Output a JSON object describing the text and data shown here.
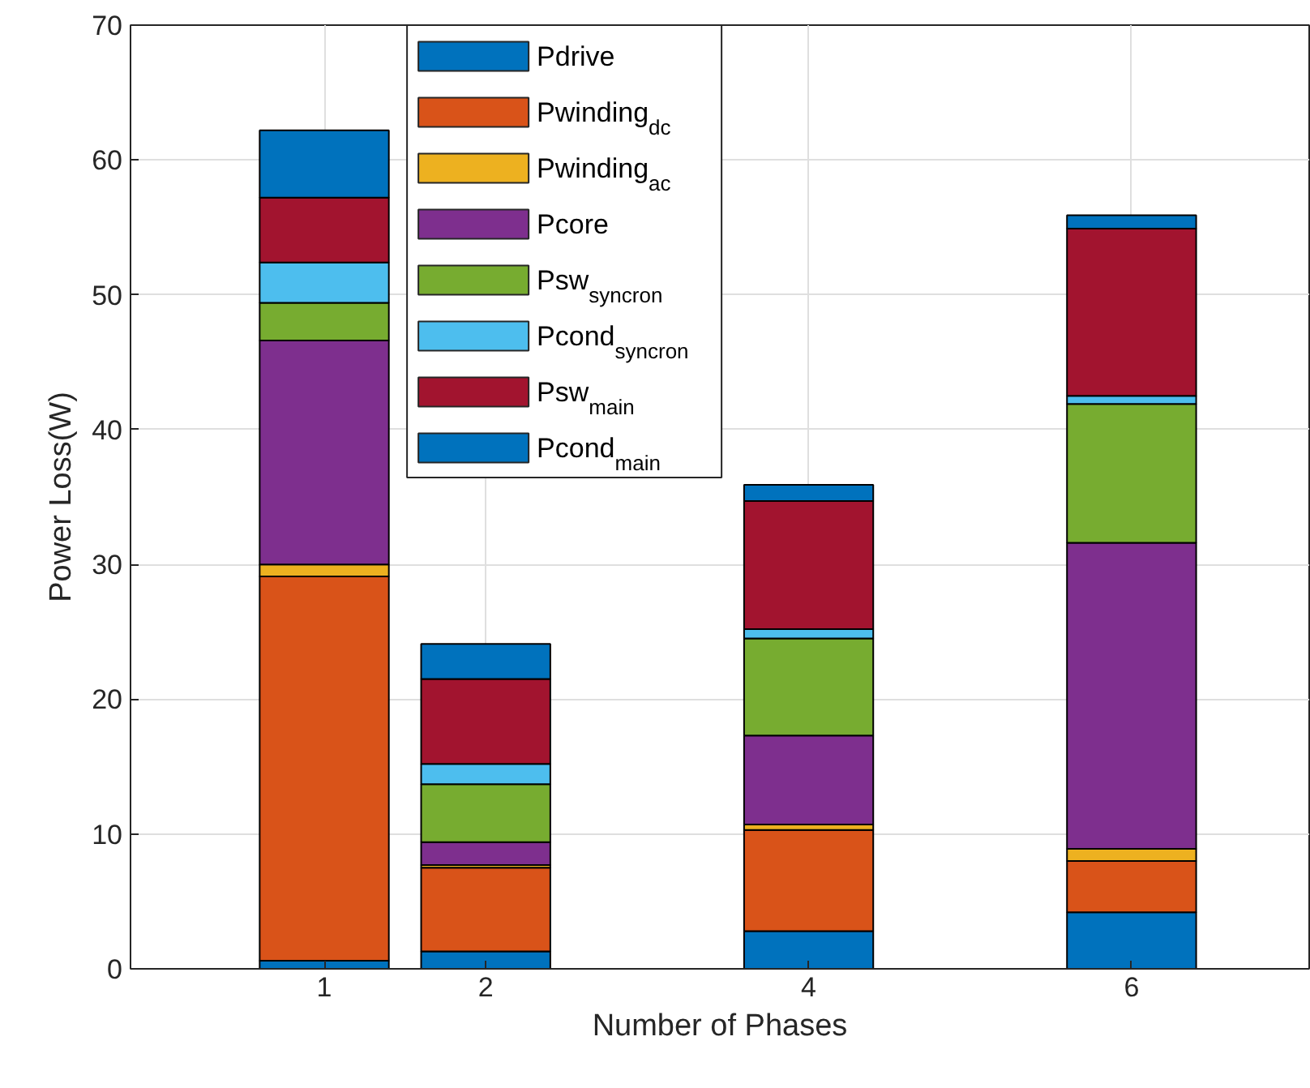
{
  "chart_data": {
    "type": "bar",
    "stacked": true,
    "xlabel": "Number of Phases",
    "ylabel": "Power Loss(W)",
    "x": [
      1,
      2,
      4,
      6
    ],
    "xlim": [
      -0.2,
      7.1
    ],
    "xticks": [
      1,
      2,
      4,
      6
    ],
    "ylim": [
      0,
      70
    ],
    "yticks": [
      0,
      10,
      20,
      30,
      40,
      50,
      60,
      70
    ],
    "grid": true,
    "legend": "top",
    "series": [
      {
        "name": "Pdrive",
        "color": "#0072bd",
        "values": [
          0.6,
          1.3,
          2.8,
          4.2
        ]
      },
      {
        "name": "Pwinding$_{dc}$",
        "color": "#d95319",
        "values": [
          28.5,
          6.2,
          7.5,
          3.8
        ]
      },
      {
        "name": "Pwinding$_{ac}$",
        "color": "#edb120",
        "values": [
          0.9,
          0.2,
          0.4,
          0.9
        ]
      },
      {
        "name": "Pcore",
        "color": "#7e2f8e",
        "values": [
          16.6,
          1.7,
          6.6,
          22.7
        ]
      },
      {
        "name": "Psw$_{syncron}$",
        "color": "#77ac30",
        "values": [
          2.8,
          4.3,
          7.2,
          10.3
        ]
      },
      {
        "name": "Pcond$_{syncron}$",
        "color": "#4dbeee",
        "values": [
          3.0,
          1.5,
          0.7,
          0.6
        ]
      },
      {
        "name": "Psw$_{main}$",
        "color": "#a2142f",
        "values": [
          4.8,
          6.3,
          9.5,
          12.4
        ]
      },
      {
        "name": "Pcond$_{main}$",
        "color": "#0072bd",
        "values": [
          5.0,
          2.6,
          1.2,
          1.0
        ]
      }
    ]
  }
}
